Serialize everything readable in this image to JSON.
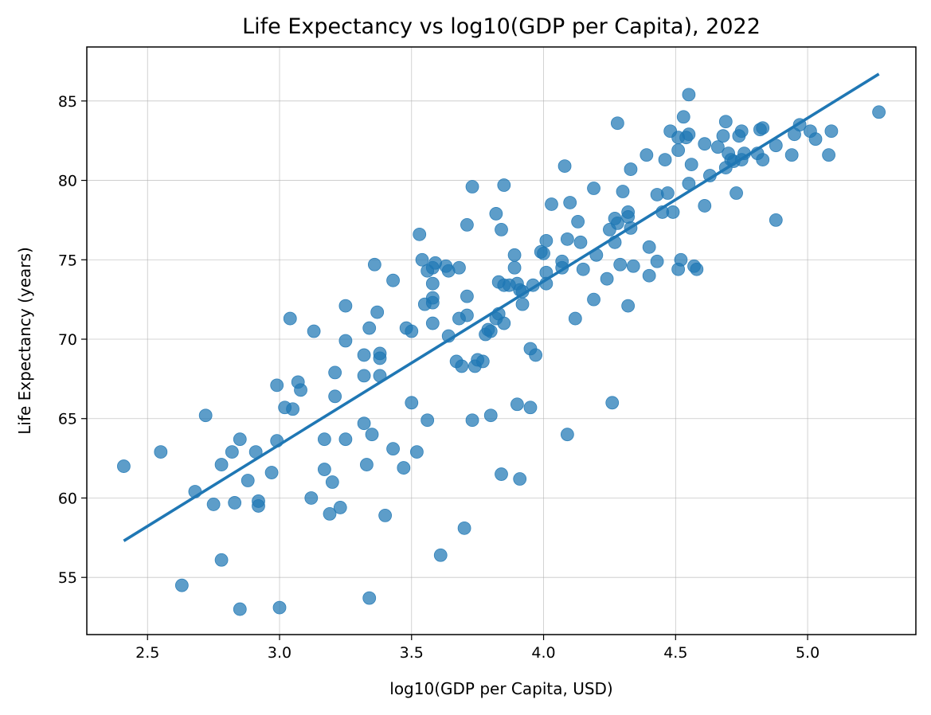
{
  "chart_data": {
    "type": "scatter",
    "title": "Life Expectancy vs log10(GDP per Capita), 2022",
    "xlabel": "log10(GDP per Capita, USD)",
    "ylabel": "Life Expectancy (years)",
    "xlim": [
      2.27,
      5.41
    ],
    "ylim": [
      51.4,
      88.4
    ],
    "xticks": [
      2.5,
      3.0,
      3.5,
      4.0,
      4.5,
      5.0
    ],
    "xtick_labels": [
      "2.5",
      "3.0",
      "3.5",
      "4.0",
      "4.5",
      "5.0"
    ],
    "yticks": [
      55,
      60,
      65,
      70,
      75,
      80,
      85
    ],
    "ytick_labels": [
      "55",
      "60",
      "65",
      "70",
      "75",
      "80",
      "85"
    ],
    "grid": true,
    "point_color": "#1f77b4",
    "line_color": "#1f77b4",
    "fit_line": {
      "x": [
        2.41,
        5.27
      ],
      "y": [
        57.3,
        86.7
      ]
    },
    "points": [
      [
        2.41,
        62.0
      ],
      [
        2.55,
        62.9
      ],
      [
        2.63,
        54.5
      ],
      [
        2.68,
        60.4
      ],
      [
        2.72,
        65.2
      ],
      [
        2.75,
        59.6
      ],
      [
        2.78,
        62.1
      ],
      [
        2.78,
        56.1
      ],
      [
        2.82,
        62.9
      ],
      [
        2.83,
        59.7
      ],
      [
        2.85,
        63.7
      ],
      [
        2.85,
        53.0
      ],
      [
        2.88,
        61.1
      ],
      [
        2.91,
        62.9
      ],
      [
        2.92,
        59.8
      ],
      [
        2.92,
        59.5
      ],
      [
        2.97,
        61.6
      ],
      [
        2.99,
        67.1
      ],
      [
        2.99,
        63.6
      ],
      [
        3.0,
        53.1
      ],
      [
        3.02,
        65.7
      ],
      [
        3.04,
        71.3
      ],
      [
        3.05,
        65.6
      ],
      [
        3.07,
        67.3
      ],
      [
        3.08,
        66.8
      ],
      [
        3.12,
        60.0
      ],
      [
        3.13,
        70.5
      ],
      [
        3.17,
        61.8
      ],
      [
        3.17,
        63.7
      ],
      [
        3.19,
        59.0
      ],
      [
        3.2,
        61.0
      ],
      [
        3.21,
        67.9
      ],
      [
        3.21,
        66.4
      ],
      [
        3.23,
        59.4
      ],
      [
        3.25,
        72.1
      ],
      [
        3.25,
        69.9
      ],
      [
        3.25,
        63.7
      ],
      [
        3.32,
        69.0
      ],
      [
        3.32,
        67.7
      ],
      [
        3.32,
        64.7
      ],
      [
        3.33,
        62.1
      ],
      [
        3.34,
        70.7
      ],
      [
        3.34,
        53.7
      ],
      [
        3.35,
        64.0
      ],
      [
        3.36,
        74.7
      ],
      [
        3.37,
        71.7
      ],
      [
        3.38,
        69.1
      ],
      [
        3.38,
        68.8
      ],
      [
        3.38,
        67.7
      ],
      [
        3.4,
        58.9
      ],
      [
        3.43,
        73.7
      ],
      [
        3.43,
        63.1
      ],
      [
        3.47,
        61.9
      ],
      [
        3.48,
        70.7
      ],
      [
        3.5,
        70.5
      ],
      [
        3.5,
        66.0
      ],
      [
        3.52,
        62.9
      ],
      [
        3.53,
        76.6
      ],
      [
        3.54,
        75.0
      ],
      [
        3.55,
        72.2
      ],
      [
        3.56,
        74.3
      ],
      [
        3.56,
        64.9
      ],
      [
        3.58,
        72.6
      ],
      [
        3.58,
        72.3
      ],
      [
        3.58,
        74.5
      ],
      [
        3.58,
        73.5
      ],
      [
        3.58,
        71.0
      ],
      [
        3.59,
        74.8
      ],
      [
        3.61,
        56.4
      ],
      [
        3.63,
        74.6
      ],
      [
        3.64,
        74.3
      ],
      [
        3.64,
        70.2
      ],
      [
        3.67,
        68.6
      ],
      [
        3.68,
        74.5
      ],
      [
        3.68,
        71.3
      ],
      [
        3.69,
        68.3
      ],
      [
        3.7,
        58.1
      ],
      [
        3.71,
        77.2
      ],
      [
        3.71,
        72.7
      ],
      [
        3.71,
        71.5
      ],
      [
        3.73,
        79.6
      ],
      [
        3.73,
        64.9
      ],
      [
        3.74,
        68.3
      ],
      [
        3.75,
        68.7
      ],
      [
        3.77,
        68.6
      ],
      [
        3.78,
        70.3
      ],
      [
        3.79,
        70.6
      ],
      [
        3.8,
        70.5
      ],
      [
        3.8,
        65.2
      ],
      [
        3.82,
        77.9
      ],
      [
        3.82,
        71.3
      ],
      [
        3.83,
        73.6
      ],
      [
        3.83,
        71.6
      ],
      [
        3.84,
        61.5
      ],
      [
        3.84,
        76.9
      ],
      [
        3.85,
        79.7
      ],
      [
        3.85,
        73.4
      ],
      [
        3.85,
        71.0
      ],
      [
        3.87,
        73.4
      ],
      [
        3.89,
        74.5
      ],
      [
        3.89,
        75.3
      ],
      [
        3.9,
        73.5
      ],
      [
        3.9,
        65.9
      ],
      [
        3.91,
        73.1
      ],
      [
        3.91,
        61.2
      ],
      [
        3.92,
        72.2
      ],
      [
        3.92,
        73.0
      ],
      [
        3.95,
        69.4
      ],
      [
        3.95,
        65.7
      ],
      [
        3.96,
        73.4
      ],
      [
        3.97,
        69.0
      ],
      [
        3.99,
        75.5
      ],
      [
        4.0,
        75.4
      ],
      [
        4.01,
        76.2
      ],
      [
        4.01,
        74.2
      ],
      [
        4.01,
        73.5
      ],
      [
        4.03,
        78.5
      ],
      [
        4.07,
        74.9
      ],
      [
        4.07,
        74.5
      ],
      [
        4.08,
        80.9
      ],
      [
        4.09,
        76.3
      ],
      [
        4.09,
        64.0
      ],
      [
        4.1,
        78.6
      ],
      [
        4.12,
        71.3
      ],
      [
        4.13,
        77.4
      ],
      [
        4.14,
        76.1
      ],
      [
        4.15,
        74.4
      ],
      [
        4.19,
        79.5
      ],
      [
        4.19,
        72.5
      ],
      [
        4.2,
        75.3
      ],
      [
        4.24,
        73.8
      ],
      [
        4.25,
        76.9
      ],
      [
        4.26,
        66.0
      ],
      [
        4.27,
        77.6
      ],
      [
        4.27,
        76.1
      ],
      [
        4.28,
        77.3
      ],
      [
        4.28,
        83.6
      ],
      [
        4.29,
        74.7
      ],
      [
        4.3,
        79.3
      ],
      [
        4.32,
        78.0
      ],
      [
        4.32,
        77.7
      ],
      [
        4.32,
        72.1
      ],
      [
        4.33,
        80.7
      ],
      [
        4.33,
        77.0
      ],
      [
        4.34,
        74.6
      ],
      [
        4.39,
        81.6
      ],
      [
        4.4,
        75.8
      ],
      [
        4.4,
        74.0
      ],
      [
        4.43,
        79.1
      ],
      [
        4.43,
        74.9
      ],
      [
        4.45,
        78.0
      ],
      [
        4.46,
        81.3
      ],
      [
        4.47,
        79.2
      ],
      [
        4.48,
        83.1
      ],
      [
        4.49,
        78.0
      ],
      [
        4.51,
        82.7
      ],
      [
        4.51,
        81.9
      ],
      [
        4.51,
        74.4
      ],
      [
        4.52,
        75.0
      ],
      [
        4.53,
        84.0
      ],
      [
        4.54,
        82.7
      ],
      [
        4.55,
        85.4
      ],
      [
        4.55,
        82.9
      ],
      [
        4.55,
        79.8
      ],
      [
        4.56,
        81.0
      ],
      [
        4.57,
        74.6
      ],
      [
        4.58,
        74.4
      ],
      [
        4.61,
        82.3
      ],
      [
        4.61,
        78.4
      ],
      [
        4.63,
        80.3
      ],
      [
        4.66,
        82.1
      ],
      [
        4.68,
        82.8
      ],
      [
        4.69,
        83.7
      ],
      [
        4.69,
        80.8
      ],
      [
        4.7,
        81.7
      ],
      [
        4.71,
        81.3
      ],
      [
        4.72,
        81.2
      ],
      [
        4.73,
        79.2
      ],
      [
        4.74,
        82.8
      ],
      [
        4.75,
        81.3
      ],
      [
        4.75,
        83.1
      ],
      [
        4.76,
        81.7
      ],
      [
        4.81,
        81.7
      ],
      [
        4.82,
        83.2
      ],
      [
        4.83,
        83.3
      ],
      [
        4.83,
        81.3
      ],
      [
        4.88,
        82.2
      ],
      [
        4.88,
        77.5
      ],
      [
        4.94,
        81.6
      ],
      [
        4.95,
        82.9
      ],
      [
        4.97,
        83.5
      ],
      [
        5.01,
        83.1
      ],
      [
        5.03,
        82.6
      ],
      [
        5.08,
        81.6
      ],
      [
        5.09,
        83.1
      ],
      [
        5.27,
        84.3
      ]
    ]
  }
}
